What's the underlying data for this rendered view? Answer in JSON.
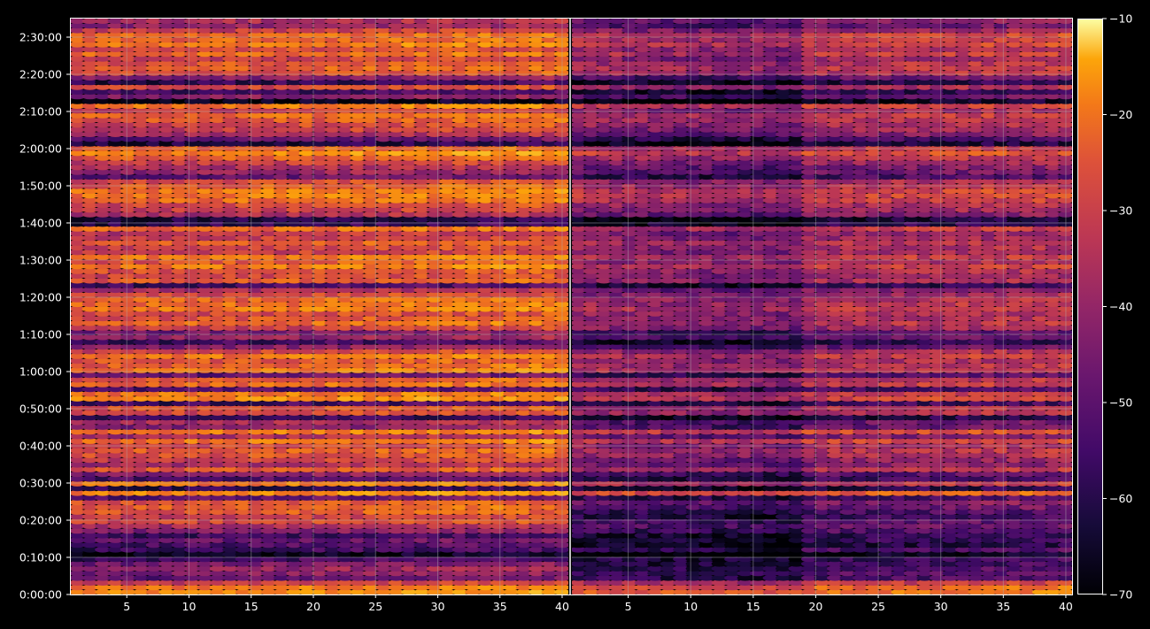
{
  "chart_data": {
    "type": "heatmap",
    "title": "",
    "colormap": "inferno",
    "background": "#000000",
    "grid": true,
    "panels": [
      {
        "name": "",
        "x_range": [
          1,
          40
        ],
        "x_ticks": [
          "5",
          "10",
          "15",
          "20",
          "25",
          "30",
          "35",
          "40"
        ]
      },
      {
        "name": "",
        "x_range": [
          1,
          40
        ],
        "x_ticks": [
          "5",
          "10",
          "15",
          "20",
          "25",
          "30",
          "35",
          "40"
        ]
      }
    ],
    "y_axis": {
      "range_seconds": [
        0,
        9300
      ],
      "ticks": [
        "0:00:00",
        "0:10:00",
        "0:20:00",
        "0:30:00",
        "0:40:00",
        "0:50:00",
        "1:00:00",
        "1:10:00",
        "1:20:00",
        "1:30:00",
        "1:40:00",
        "1:50:00",
        "2:00:00",
        "2:10:00",
        "2:20:00",
        "2:30:00"
      ]
    },
    "colorbar": {
      "range": [
        -70,
        -10
      ],
      "ticks": [
        "−70",
        "−60",
        "−50",
        "−40",
        "−30",
        "−20",
        "−10"
      ]
    },
    "row_levels_left": [
      -28,
      -30,
      -40,
      -55,
      -50,
      -48,
      -52,
      -60,
      -70,
      -60,
      -58,
      -55,
      -60,
      -50,
      -45,
      -38,
      -40,
      -35,
      -33,
      -35,
      -55,
      -28,
      -62,
      -30,
      -58,
      -50,
      -35,
      -45,
      -40,
      -36,
      -34,
      -38,
      -30,
      -45,
      -30,
      -50,
      -45,
      -62,
      -38,
      -35,
      -60,
      -28,
      -30,
      -58,
      -32,
      -35,
      -55,
      -30,
      -33,
      -35,
      -30,
      -38,
      -50,
      -60,
      -48,
      -52,
      -40,
      -32,
      -36,
      -38,
      -30,
      -32,
      -33,
      -38,
      -45,
      -60,
      -35,
      -38,
      -36,
      -30,
      -35,
      -30,
      -40,
      -38,
      -35,
      -40,
      -42,
      -32,
      -62,
      -65,
      -45,
      -40,
      -38,
      -32,
      -30,
      -30,
      -34,
      -38,
      -55,
      -48,
      -45,
      -40,
      -34,
      -28,
      -33,
      -65,
      -55,
      -45,
      -40,
      -38,
      -35,
      -32,
      -40,
      -30,
      -70,
      -50,
      -60,
      -38,
      -62,
      -50,
      -36,
      -34,
      -35,
      -40,
      -32,
      -38,
      -30,
      -33,
      -32,
      -40,
      -48,
      -45
    ],
    "row_levels_right": [
      -32,
      -34,
      -42,
      -60,
      -58,
      -60,
      -62,
      -62,
      -70,
      -60,
      -66,
      -63,
      -64,
      -58,
      -55,
      -58,
      -62,
      -60,
      -55,
      -52,
      -60,
      -35,
      -65,
      -42,
      -62,
      -58,
      -44,
      -52,
      -50,
      -45,
      -44,
      -46,
      -40,
      -52,
      -38,
      -56,
      -55,
      -66,
      -45,
      -44,
      -62,
      -40,
      -42,
      -60,
      -42,
      -44,
      -58,
      -42,
      -44,
      -46,
      -42,
      -46,
      -56,
      -64,
      -55,
      -58,
      -48,
      -44,
      -46,
      -46,
      -42,
      -44,
      -45,
      -48,
      -52,
      -64,
      -46,
      -48,
      -46,
      -42,
      -46,
      -42,
      -48,
      -46,
      -44,
      -48,
      -50,
      -42,
      -64,
      -67,
      -52,
      -48,
      -46,
      -42,
      -40,
      -40,
      -44,
      -46,
      -60,
      -55,
      -52,
      -48,
      -44,
      -38,
      -42,
      -67,
      -60,
      -52,
      -48,
      -46,
      -44,
      -42,
      -48,
      -40,
      -70,
      -56,
      -64,
      -46,
      -65,
      -56,
      -44,
      -42,
      -44,
      -48,
      -42,
      -46,
      -40,
      -42,
      -40,
      -48,
      -55,
      -52
    ]
  }
}
